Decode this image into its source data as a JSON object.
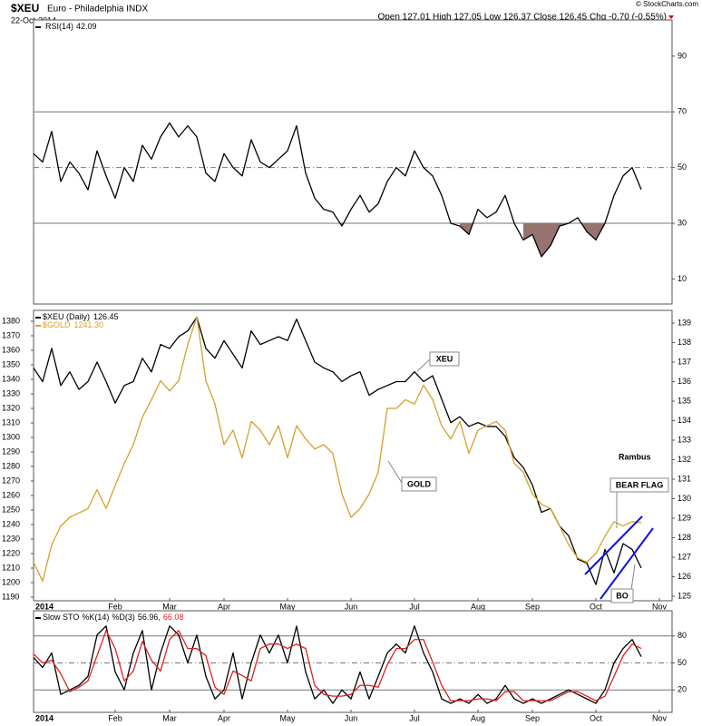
{
  "header": {
    "symbol": "$XEU",
    "name": "Euro - Philadelphia INDX",
    "date": "22-Oct-2014",
    "quote": "Open 127.01 High 127.05 Low 126.37 Close 126.45 Chg -0.70 (-0.55%)",
    "credit": "© StockCharts.com"
  },
  "chart_data": [
    {
      "type": "line",
      "yaxis_side": "right",
      "ylim": [
        1,
        103
      ],
      "yticks": [
        10,
        30,
        50,
        70,
        90
      ],
      "reference_lines": [
        {
          "value": 70,
          "dashed": false
        },
        {
          "value": 50,
          "dashed": true
        },
        {
          "value": 30,
          "dashed": false
        }
      ],
      "fill_below": 30,
      "fill_color": "#977370",
      "series": [
        {
          "name": "RSI(14)",
          "last_label": "42.09",
          "color": "#000000",
          "values": [
            55,
            52,
            63,
            45,
            52,
            48,
            42,
            56,
            47,
            39,
            50,
            45,
            58,
            53,
            61,
            66,
            61,
            65,
            61,
            48,
            45,
            55,
            50,
            47,
            60,
            52,
            50,
            53,
            56,
            65,
            48,
            39,
            35,
            34,
            29,
            35,
            40,
            34,
            37,
            45,
            50,
            47,
            56,
            50,
            47,
            40,
            30,
            29,
            26,
            35,
            32,
            34,
            40,
            30,
            24,
            26,
            18,
            22,
            29,
            30,
            32,
            27,
            24,
            30,
            40,
            47,
            50,
            42.09,
            null,
            null
          ]
        }
      ]
    },
    {
      "type": "line",
      "yaxis_side": "left",
      "ylim": [
        1187.5,
        1387.5
      ],
      "yticks": [
        1190,
        1200,
        1210,
        1220,
        1230,
        1240,
        1250,
        1260,
        1270,
        1280,
        1290,
        1300,
        1310,
        1320,
        1330,
        1340,
        1350,
        1360,
        1370,
        1380
      ],
      "y2lim": [
        124.77,
        139.65
      ],
      "y2ticks": [
        125,
        126,
        127,
        128,
        129,
        130,
        131,
        132,
        133,
        134,
        135,
        136,
        137,
        138,
        139
      ],
      "categories": [
        "2014",
        null,
        null,
        null,
        null,
        null,
        null,
        null,
        null,
        "Feb",
        null,
        null,
        null,
        null,
        null,
        "Mar",
        null,
        null,
        null,
        null,
        null,
        "Apr",
        null,
        null,
        null,
        null,
        null,
        null,
        "May",
        null,
        null,
        null,
        null,
        null,
        null,
        "Jun",
        null,
        null,
        null,
        null,
        null,
        null,
        "Jul",
        null,
        null,
        null,
        null,
        null,
        null,
        "Aug",
        null,
        null,
        null,
        null,
        null,
        "Sep",
        null,
        null,
        null,
        null,
        null,
        null,
        "Oct",
        null,
        null,
        null,
        null,
        null,
        null,
        "Nov"
      ],
      "annotations": [
        "XEU",
        "GOLD",
        "Rambus",
        "BEAR FLAG",
        "BO"
      ],
      "series": [
        {
          "name": "$XEU (Daily)",
          "last_label": "126.45",
          "color": "#000000",
          "axis": "y2",
          "values": [
            136.7,
            136.0,
            137.7,
            135.8,
            136.5,
            135.6,
            136.0,
            137.0,
            136.0,
            134.9,
            135.8,
            136.0,
            137.2,
            136.5,
            137.9,
            137.7,
            138.3,
            138.6,
            139.3,
            137.7,
            137.2,
            138.1,
            137.4,
            136.7,
            138.6,
            137.9,
            138.1,
            138.3,
            138.1,
            139.2,
            138.1,
            137.0,
            136.7,
            136.5,
            136.0,
            136.3,
            136.5,
            135.3,
            135.6,
            135.8,
            136.0,
            136.0,
            136.5,
            136.0,
            136.3,
            135.1,
            133.9,
            134.2,
            133.7,
            133.9,
            133.7,
            133.7,
            133.2,
            132.1,
            131.6,
            130.7,
            129.3,
            129.5,
            128.6,
            128.1,
            126.9,
            126.7,
            125.6,
            127.4,
            126.2,
            127.7,
            127.4,
            126.45,
            null,
            null
          ]
        },
        {
          "name": "$GOLD",
          "last_label": "1241.30",
          "color": "#d4a02a",
          "axis": "y",
          "values": [
            1214,
            1201,
            1226,
            1239,
            1245,
            1248,
            1251,
            1264,
            1251,
            1267,
            1282,
            1295,
            1314,
            1326,
            1339,
            1332,
            1339,
            1364,
            1383,
            1339,
            1323,
            1295,
            1305,
            1286,
            1311,
            1305,
            1295,
            1308,
            1286,
            1308,
            1299,
            1292,
            1295,
            1289,
            1261,
            1245,
            1251,
            1261,
            1276,
            1320,
            1320,
            1326,
            1323,
            1336,
            1326,
            1308,
            1299,
            1311,
            1289,
            1305,
            1308,
            1311,
            1305,
            1282,
            1276,
            1261,
            1254,
            1251,
            1239,
            1226,
            1217,
            1214,
            1220,
            1232,
            1242,
            1239,
            1242,
            1241.3,
            null,
            null
          ]
        }
      ]
    },
    {
      "type": "line",
      "yaxis_side": "right",
      "title": "Slow STO",
      "ylim": [
        -5,
        108
      ],
      "yticks": [
        20,
        50,
        80
      ],
      "reference_lines": [
        {
          "value": 80,
          "dashed": false
        },
        {
          "value": 50,
          "dashed": true
        },
        {
          "value": 20,
          "dashed": false
        }
      ],
      "categories": [
        "2014",
        null,
        null,
        null,
        null,
        null,
        null,
        null,
        null,
        "Feb",
        null,
        null,
        null,
        null,
        null,
        "Mar",
        null,
        null,
        null,
        null,
        null,
        "Apr",
        null,
        null,
        null,
        null,
        null,
        null,
        "May",
        null,
        null,
        null,
        null,
        null,
        null,
        "Jun",
        null,
        null,
        null,
        null,
        null,
        null,
        "Jul",
        null,
        null,
        null,
        null,
        null,
        null,
        "Aug",
        null,
        null,
        null,
        null,
        null,
        "Sep",
        null,
        null,
        null,
        null,
        null,
        null,
        "Oct",
        null,
        null,
        null,
        null,
        null,
        null,
        "Nov"
      ],
      "series": [
        {
          "name": "%K(14)",
          "last_label": "56.96,",
          "color": "#000000",
          "values": [
            56,
            45,
            61,
            15,
            20,
            25,
            35,
            81,
            91,
            40,
            20,
            61,
            86,
            20,
            61,
            91,
            81,
            50,
            81,
            35,
            10,
            20,
            61,
            10,
            50,
            81,
            61,
            81,
            50,
            91,
            40,
            10,
            20,
            5,
            20,
            10,
            40,
            10,
            35,
            61,
            71,
            61,
            91,
            61,
            40,
            10,
            5,
            10,
            5,
            15,
            5,
            10,
            25,
            10,
            5,
            10,
            5,
            10,
            15,
            20,
            15,
            10,
            5,
            20,
            50,
            66,
            76,
            56.96,
            null,
            null
          ]
        },
        {
          "name": "%D(3)",
          "last_label": "66.08",
          "color": "#e02020",
          "values": [
            60,
            50,
            53,
            38,
            18,
            23,
            30,
            58,
            86,
            66,
            30,
            41,
            74,
            53,
            41,
            76,
            86,
            66,
            66,
            58,
            23,
            15,
            41,
            36,
            30,
            66,
            71,
            71,
            66,
            71,
            66,
            25,
            15,
            13,
            13,
            15,
            25,
            25,
            23,
            48,
            66,
            66,
            76,
            76,
            51,
            25,
            8,
            8,
            8,
            10,
            10,
            8,
            18,
            18,
            8,
            8,
            8,
            8,
            13,
            18,
            18,
            13,
            8,
            13,
            35,
            58,
            71,
            66.08,
            null,
            null
          ]
        }
      ]
    }
  ]
}
